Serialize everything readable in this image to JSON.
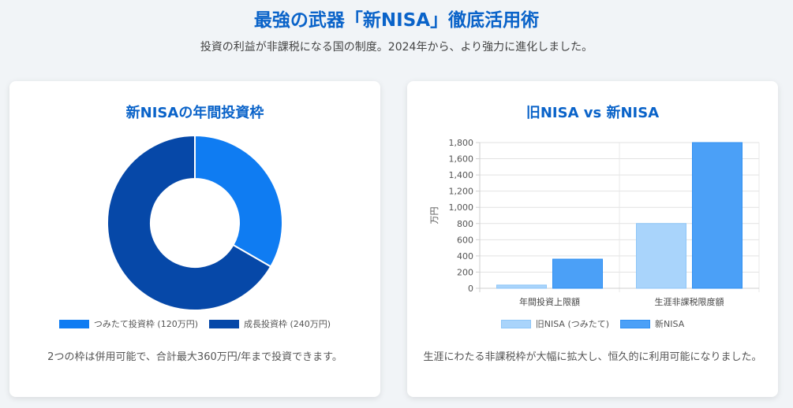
{
  "header": {
    "title": "最強の武器「新NISA」徹底活用術",
    "subtitle": "投資の利益が非課税になる国の制度。2024年から、より強力に進化しました。"
  },
  "left_card": {
    "title": "新NISAの年間投資枠",
    "caption": "2つの枠は併用可能で、合計最大360万円/年まで投資できます。"
  },
  "right_card": {
    "title": "旧NISA vs 新NISA",
    "caption": "生涯にわたる非課税枠が大幅に拡大し、恒久的に利用可能になりました。"
  },
  "chart_data": [
    {
      "type": "pie",
      "donut": true,
      "labels": [
        "つみたて投資枠 (120万円)",
        "成長投資枠 (240万円)"
      ],
      "values": [
        120,
        240
      ],
      "colors": [
        "#0f7cf2",
        "#0648a8"
      ],
      "legend_position": "bottom"
    },
    {
      "type": "bar",
      "categories": [
        "年間投資上限額",
        "生涯非課税限度額"
      ],
      "series": [
        {
          "name": "旧NISA (つみたて)",
          "values": [
            40,
            800
          ],
          "color": "#a9d4fb",
          "border": "#8ec6f8"
        },
        {
          "name": "新NISA",
          "values": [
            360,
            1800
          ],
          "color": "#4ba0f7",
          "border": "#2f8ff2"
        }
      ],
      "ylabel": "万円",
      "ylim": [
        0,
        1800
      ],
      "yticks": [
        "0",
        "200",
        "400",
        "600",
        "800",
        "1,000",
        "1,200",
        "1,400",
        "1,600",
        "1,800"
      ],
      "grid": true,
      "legend_position": "bottom"
    }
  ]
}
